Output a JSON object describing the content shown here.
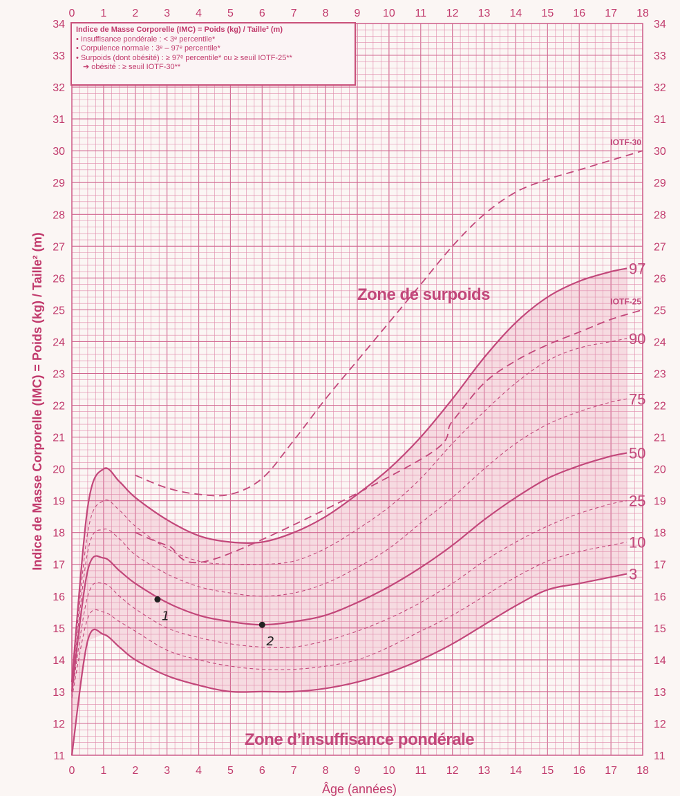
{
  "colors": {
    "background": "#fbf6f4",
    "grid": "#e08aaa",
    "grid_major": "#d0668f",
    "curve": "#c2477a",
    "band_fill": "#f2c4d2",
    "text": "#c13a6c",
    "marks": "#222222"
  },
  "legend": {
    "title": "Indice de Masse Corporelle (IMC) = Poids (kg) / Taille² (m)",
    "line1": "• Insuffisance pondérale : < 3ᵉ percentile*",
    "line2": "• Corpulence normale : 3ᵉ – 97ᵉ percentile*",
    "line3": "• Surpoids (dont obésité) : ≥ 97ᵉ percentile* ou ≥ seuil IOTF-25**",
    "line4": "➔ obésité : ≥ seuil IOTF-30**"
  },
  "chart_data": {
    "type": "line",
    "xlabel": "Âge (années)",
    "ylabel": "Indice de Masse Corporelle (IMC) = Poids (kg) / Taille² (m)",
    "xlim": [
      0,
      18
    ],
    "ylim": [
      11,
      34
    ],
    "x_ticks": [
      "0",
      "1",
      "2",
      "3",
      "4",
      "5",
      "6",
      "7",
      "8",
      "9",
      "10",
      "11",
      "12",
      "13",
      "14",
      "15",
      "16",
      "17",
      "18"
    ],
    "y_ticks": [
      "11",
      "12",
      "13",
      "14",
      "15",
      "16",
      "17",
      "18",
      "19",
      "20",
      "21",
      "22",
      "23",
      "24",
      "25",
      "26",
      "27",
      "28",
      "29",
      "30",
      "31",
      "32",
      "33",
      "34"
    ],
    "zones": {
      "overweight": "Zone de surpoids",
      "underweight": "Zone d’insuffisance pondérale"
    },
    "series": [
      {
        "name": "97",
        "style": "solid",
        "x": [
          0,
          0.5,
          1,
          1.5,
          2,
          3,
          4,
          5,
          6,
          7,
          8,
          9,
          10,
          11,
          12,
          13,
          14,
          15,
          16,
          17,
          17.5
        ],
        "y": [
          13.3,
          18.8,
          20.0,
          19.6,
          19.1,
          18.4,
          17.9,
          17.7,
          17.7,
          18.0,
          18.5,
          19.2,
          20.0,
          21.0,
          22.2,
          23.5,
          24.6,
          25.4,
          25.9,
          26.2,
          26.3
        ]
      },
      {
        "name": "90",
        "style": "dashed",
        "x": [
          0,
          0.5,
          1,
          1.5,
          2,
          3,
          4,
          5,
          6,
          7,
          8,
          9,
          10,
          11,
          12,
          13,
          14,
          15,
          16,
          17,
          17.5
        ],
        "y": [
          13.2,
          18.0,
          19.0,
          18.7,
          18.2,
          17.5,
          17.1,
          17.0,
          17.0,
          17.1,
          17.5,
          18.1,
          18.8,
          19.7,
          20.8,
          21.8,
          22.7,
          23.4,
          23.8,
          24.0,
          24.1
        ]
      },
      {
        "name": "75",
        "style": "dashed",
        "x": [
          0,
          0.5,
          1,
          1.5,
          2,
          3,
          4,
          5,
          6,
          7,
          8,
          9,
          10,
          11,
          12,
          13,
          14,
          15,
          16,
          17,
          17.5
        ],
        "y": [
          13.1,
          17.4,
          18.1,
          17.8,
          17.3,
          16.7,
          16.3,
          16.1,
          16.0,
          16.1,
          16.4,
          16.9,
          17.5,
          18.3,
          19.1,
          20.0,
          20.8,
          21.4,
          21.8,
          22.1,
          22.2
        ]
      },
      {
        "name": "50",
        "style": "solid",
        "x": [
          0,
          0.5,
          1,
          1.5,
          2,
          3,
          4,
          5,
          6,
          7,
          8,
          9,
          10,
          11,
          12,
          13,
          14,
          15,
          16,
          17,
          17.5
        ],
        "y": [
          13.0,
          16.8,
          17.2,
          16.8,
          16.4,
          15.8,
          15.4,
          15.2,
          15.1,
          15.2,
          15.4,
          15.8,
          16.3,
          16.9,
          17.6,
          18.4,
          19.1,
          19.7,
          20.1,
          20.4,
          20.5
        ]
      },
      {
        "name": "25",
        "style": "dashed",
        "x": [
          0,
          0.5,
          1,
          1.5,
          2,
          3,
          4,
          5,
          6,
          7,
          8,
          9,
          10,
          11,
          12,
          13,
          14,
          15,
          16,
          17,
          17.5
        ],
        "y": [
          12.9,
          16.0,
          16.4,
          16.0,
          15.6,
          15.0,
          14.7,
          14.5,
          14.4,
          14.4,
          14.6,
          14.9,
          15.3,
          15.8,
          16.4,
          17.1,
          17.7,
          18.2,
          18.6,
          18.9,
          19.0
        ]
      },
      {
        "name": "10",
        "style": "dashed",
        "x": [
          0,
          0.5,
          1,
          1.5,
          2,
          3,
          4,
          5,
          6,
          7,
          8,
          9,
          10,
          11,
          12,
          13,
          14,
          15,
          16,
          17,
          17.5
        ],
        "y": [
          12.8,
          15.3,
          15.5,
          15.2,
          14.9,
          14.3,
          14.0,
          13.8,
          13.7,
          13.7,
          13.8,
          14.0,
          14.4,
          14.9,
          15.4,
          16.0,
          16.6,
          17.1,
          17.4,
          17.6,
          17.7
        ]
      },
      {
        "name": "3",
        "style": "solid",
        "x": [
          0,
          0.5,
          1,
          1.5,
          2,
          3,
          4,
          5,
          6,
          7,
          8,
          9,
          10,
          11,
          12,
          13,
          14,
          15,
          16,
          17,
          17.5
        ],
        "y": [
          11.0,
          14.6,
          14.8,
          14.4,
          14.0,
          13.5,
          13.2,
          13.0,
          13.0,
          13.0,
          13.1,
          13.3,
          13.6,
          14.0,
          14.5,
          15.1,
          15.7,
          16.2,
          16.4,
          16.6,
          16.7
        ]
      },
      {
        "name": "IOTF-25",
        "style": "dashed",
        "x": [
          2,
          3,
          4.6,
          11,
          12,
          13,
          14,
          15,
          16,
          17,
          18
        ],
        "y": [
          18.0,
          17.6,
          17.2,
          20.3,
          21.5,
          22.7,
          23.4,
          23.9,
          24.3,
          24.7,
          25.0
        ]
      },
      {
        "name": "IOTF-30",
        "style": "dashed",
        "x": [
          2,
          3,
          4,
          5,
          6,
          7,
          8,
          9,
          10,
          11,
          12,
          13,
          14,
          15,
          16,
          17,
          18
        ],
        "y": [
          19.8,
          19.4,
          19.2,
          19.2,
          19.7,
          20.9,
          22.2,
          23.4,
          24.6,
          25.8,
          27.0,
          28.0,
          28.7,
          29.1,
          29.4,
          29.7,
          30.0
        ]
      }
    ],
    "curve_labels": [
      "97",
      "90",
      "75",
      "50",
      "25",
      "10",
      "3",
      "IOTF-25",
      "IOTF-30"
    ],
    "points": [
      {
        "label": "1",
        "x": 2.7,
        "y": 15.9
      },
      {
        "label": "2",
        "x": 6.0,
        "y": 15.1
      }
    ]
  }
}
